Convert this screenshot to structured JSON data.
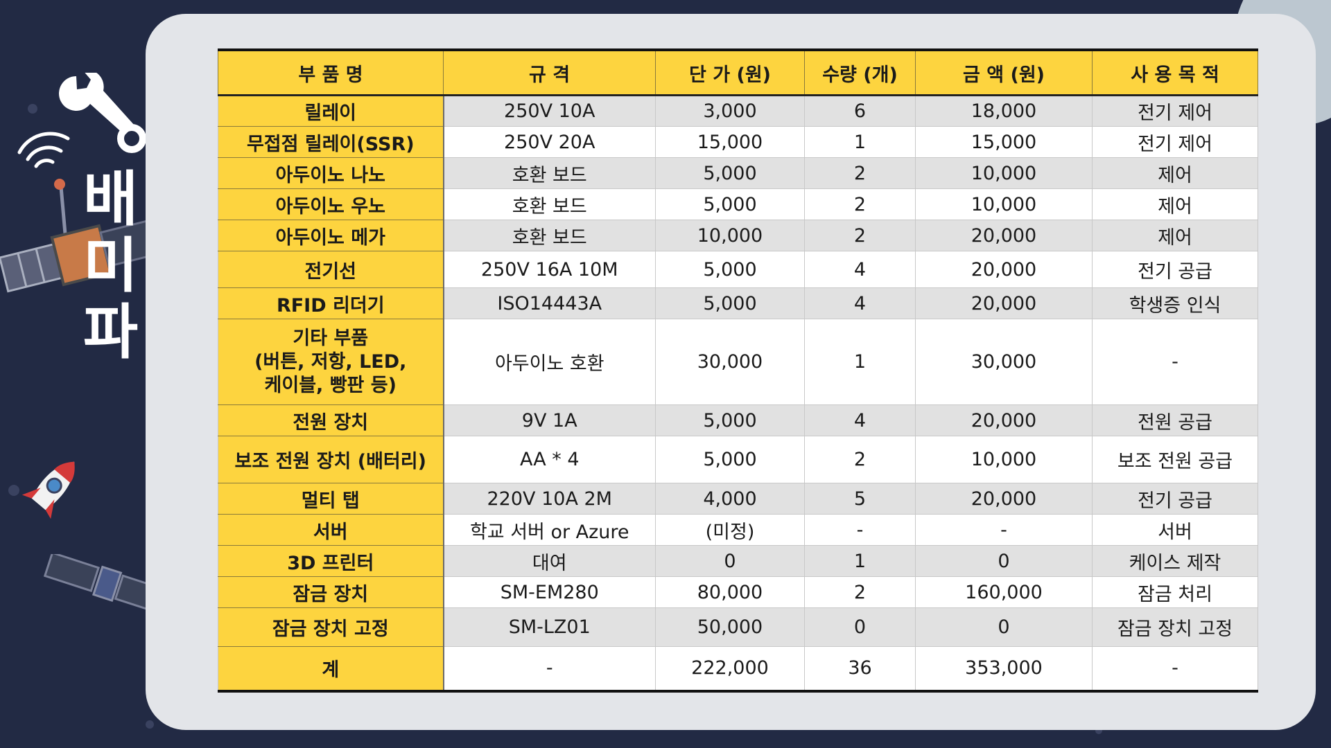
{
  "side_title": "배미파",
  "table": {
    "headers": [
      "부 품 명",
      "규  격",
      "단  가 (원)",
      "수량 (개)",
      "금  액 (원)",
      "사 용 목 적"
    ],
    "rows": [
      {
        "name": "릴레이",
        "spec": "250V 10A",
        "price": "3,000",
        "qty": "6",
        "amount": "18,000",
        "purpose": "전기 제어"
      },
      {
        "name": "무접점 릴레이(SSR)",
        "spec": "250V 20A",
        "price": "15,000",
        "qty": "1",
        "amount": "15,000",
        "purpose": "전기 제어"
      },
      {
        "name": "아두이노 나노",
        "spec": "호환 보드",
        "price": "5,000",
        "qty": "2",
        "amount": "10,000",
        "purpose": "제어"
      },
      {
        "name": "아두이노 우노",
        "spec": "호환 보드",
        "price": "5,000",
        "qty": "2",
        "amount": "10,000",
        "purpose": "제어"
      },
      {
        "name": "아두이노 메가",
        "spec": "호환 보드",
        "price": "10,000",
        "qty": "2",
        "amount": "20,000",
        "purpose": "제어"
      },
      {
        "name": "전기선",
        "spec": "250V 16A 10M",
        "price": "5,000",
        "qty": "4",
        "amount": "20,000",
        "purpose": "전기 공급"
      },
      {
        "name": "RFID 리더기",
        "spec": "ISO14443A",
        "price": "5,000",
        "qty": "4",
        "amount": "20,000",
        "purpose": "학생증 인식"
      },
      {
        "name_lines": [
          "기타 부품",
          "(버튼, 저항, LED,",
          "케이블, 빵판 등)"
        ],
        "spec": "아두이노 호환",
        "price": "30,000",
        "qty": "1",
        "amount": "30,000",
        "purpose": "-"
      },
      {
        "name": "전원 장치",
        "spec": "9V 1A",
        "price": "5,000",
        "qty": "4",
        "amount": "20,000",
        "purpose": "전원 공급"
      },
      {
        "name": "보조 전원 장치 (배터리)",
        "spec": "AA * 4",
        "price": "5,000",
        "qty": "2",
        "amount": "10,000",
        "purpose": "보조 전원 공급"
      },
      {
        "name": "멀티 탭",
        "spec": "220V 10A 2M",
        "price": "4,000",
        "qty": "5",
        "amount": "20,000",
        "purpose": "전기 공급"
      },
      {
        "name": "서버",
        "spec": "학교 서버 or Azure",
        "price": "(미정)",
        "qty": "-",
        "amount": "-",
        "purpose": "서버"
      },
      {
        "name": "3D 프린터",
        "spec": "대여",
        "price": "0",
        "qty": "1",
        "amount": "0",
        "purpose": "케이스 제작"
      },
      {
        "name": "잠금 장치",
        "spec": "SM-EM280",
        "price": "80,000",
        "qty": "2",
        "amount": "160,000",
        "purpose": "잠금 처리"
      },
      {
        "name": "잠금 장치 고정",
        "spec": "SM-LZ01",
        "price": "50,000",
        "qty": "0",
        "amount": "0",
        "purpose": "잠금 장치 고정"
      }
    ],
    "total": {
      "name": "계",
      "spec": "-",
      "price": "222,000",
      "qty": "36",
      "amount": "353,000",
      "purpose": "-"
    }
  }
}
